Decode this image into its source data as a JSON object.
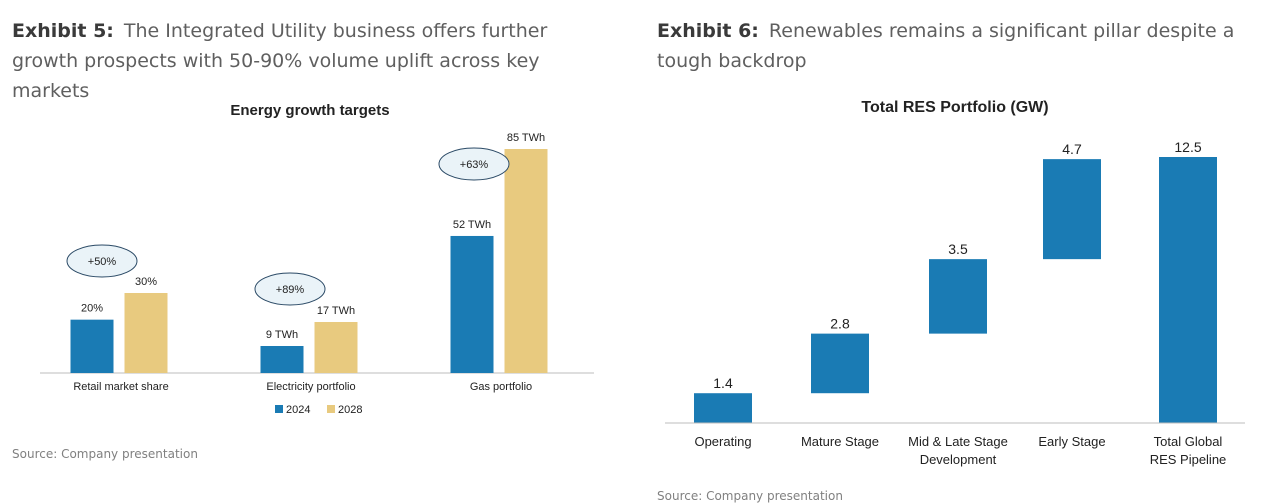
{
  "exhibit5": {
    "label": "Exhibit 5:",
    "title": "The Integrated Utility business offers further growth prospects with 50-90% volume uplift across key markets",
    "source": "Source: Company presentation"
  },
  "exhibit6": {
    "label": "Exhibit 6:",
    "title": "Renewables remains a significant pillar despite a tough backdrop",
    "source": "Source: Company presentation"
  },
  "colors": {
    "series_2024": "#1a7bb4",
    "series_2028": "#e8ca7f",
    "waterfall": "#1a7bb4"
  },
  "chart_data": [
    {
      "type": "bar",
      "title": "Energy growth targets",
      "categories": [
        "Retail market share",
        "Electricity portfolio",
        "Gas portfolio"
      ],
      "series": [
        {
          "name": "2024",
          "values": [
            20,
            9,
            52
          ],
          "labels": [
            "20%",
            "9 TWh",
            "52 TWh"
          ]
        },
        {
          "name": "2028",
          "values": [
            30,
            17,
            85
          ],
          "labels": [
            "30%",
            "17 TWh",
            "85 TWh"
          ]
        }
      ],
      "annotations": [
        "+50%",
        "+89%",
        "+63%"
      ],
      "ylim": [
        0,
        90
      ],
      "legend": "bottom",
      "grid": false
    },
    {
      "type": "bar",
      "subtype": "waterfall",
      "title": "Total RES Portfolio (GW)",
      "categories": [
        "Operating",
        "Mature Stage",
        "Mid & Late Stage Development",
        "Early Stage",
        "Total Global RES Pipeline"
      ],
      "category_lines": [
        [
          "Operating"
        ],
        [
          "Mature Stage"
        ],
        [
          "Mid & Late Stage",
          "Development"
        ],
        [
          "Early Stage"
        ],
        [
          "Total Global",
          "RES Pipeline"
        ]
      ],
      "values": [
        1.4,
        2.8,
        3.5,
        4.7,
        12.5
      ],
      "labels": [
        "1.4",
        "2.8",
        "3.5",
        "4.7",
        "12.5"
      ],
      "is_total": [
        false,
        false,
        false,
        false,
        true
      ],
      "ylim": [
        0,
        12.5
      ],
      "grid": false
    }
  ]
}
